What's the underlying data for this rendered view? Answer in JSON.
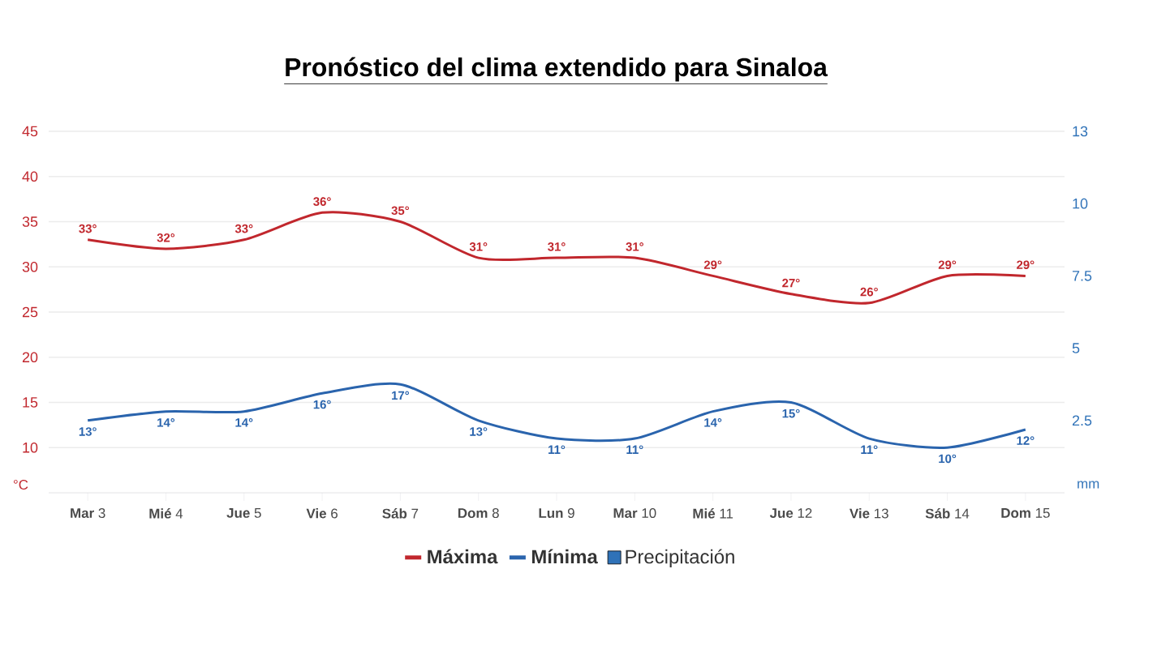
{
  "chart_data": {
    "type": "line",
    "title": "Pronóstico del clima extendido para Sinaloa",
    "ylabel": "°C",
    "y2label": "mm",
    "categories": [
      "**Mar** 3",
      "**Mié** 4",
      "**Jue** 5",
      "**Vie** 6",
      "**Sáb** 7",
      "**Dom** 8",
      "**Lun** 9",
      "**Mar** 10",
      "**Mié** 11",
      "**Jue** 12",
      "**Vie** 13",
      "**Sáb** 14",
      "**Dom** 15"
    ],
    "series": [
      {
        "name": "Máxima",
        "color": "#c1272d",
        "values": [
          33,
          32,
          33,
          36,
          35,
          31,
          31,
          31,
          29,
          27,
          26,
          29,
          29
        ],
        "value_labels": [
          "33°",
          "32°",
          "33°",
          "36°",
          "35°",
          "31°",
          "31°",
          "31°",
          "29°",
          "27°",
          "26°",
          "29°",
          "29°"
        ]
      },
      {
        "name": "Mínima",
        "color": "#2a64ad",
        "values": [
          13,
          14,
          14,
          16,
          17,
          13,
          11,
          11,
          14,
          15,
          11,
          10,
          12
        ],
        "value_labels": [
          "13°",
          "14°",
          "14°",
          "16°",
          "17°",
          "13°",
          "11°",
          "11°",
          "14°",
          "15°",
          "11°",
          "10°",
          "12°"
        ]
      },
      {
        "name": "Precipitación",
        "type": "bar",
        "axis": "y2",
        "color": "#2f72b8",
        "values": [
          null,
          null,
          null,
          null,
          null,
          null,
          null,
          null,
          null,
          null,
          null,
          null,
          null
        ]
      }
    ],
    "ylim": [
      5,
      45
    ],
    "yticks": [
      10,
      15,
      20,
      25,
      30,
      35,
      40,
      45
    ],
    "y2lim": [
      0,
      12.5
    ],
    "y2ticks": [
      2.5,
      5,
      7.5,
      10,
      {
        "value": 12.5,
        "label": "13"
      }
    ],
    "grid": "y",
    "legend": "bottom"
  }
}
